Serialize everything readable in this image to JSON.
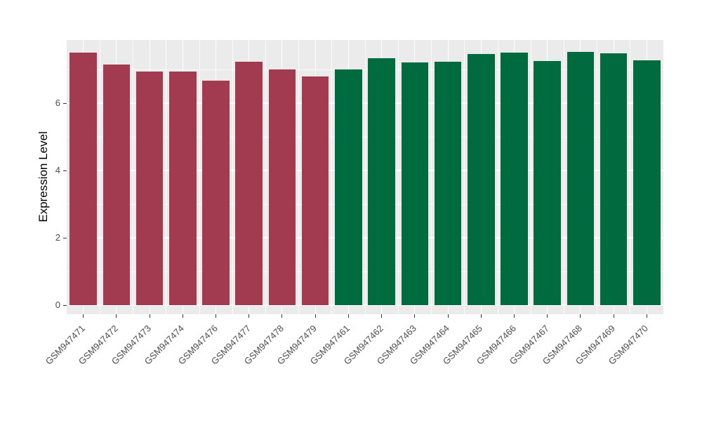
{
  "chart_data": {
    "type": "bar",
    "title": "",
    "xlabel": "",
    "ylabel": "Expression Level",
    "ylim": [
      0,
      7.875
    ],
    "yticks": [
      0,
      2,
      4,
      6
    ],
    "minor_yticks": [
      1,
      3,
      5,
      7
    ],
    "grid": true,
    "legend_position": "none",
    "categories": [
      "GSM947471",
      "GSM947472",
      "GSM947473",
      "GSM947474",
      "GSM947476",
      "GSM947477",
      "GSM947478",
      "GSM947479",
      "GSM947461",
      "GSM947462",
      "GSM947463",
      "GSM947464",
      "GSM947465",
      "GSM947466",
      "GSM947467",
      "GSM947468",
      "GSM947469",
      "GSM947470"
    ],
    "values": [
      7.5,
      7.15,
      6.93,
      6.93,
      6.67,
      7.24,
      7.0,
      6.79,
      7.0,
      7.33,
      7.2,
      7.24,
      7.45,
      7.5,
      7.25,
      7.52,
      7.47,
      7.28
    ],
    "bar_groups": [
      "maroon",
      "maroon",
      "maroon",
      "maroon",
      "maroon",
      "maroon",
      "maroon",
      "maroon",
      "green",
      "green",
      "green",
      "green",
      "green",
      "green",
      "green",
      "green",
      "green",
      "green"
    ]
  },
  "colors": {
    "background": "#FFFFFF",
    "panel_bg": "#EBEBEB",
    "grid": "#FFFFFF",
    "axis_text": "#4D4D4D",
    "axis_title": "#000000",
    "tick_mark": "#333333",
    "groups": {
      "maroon": "#A23B4F",
      "green": "#006B3F"
    }
  }
}
